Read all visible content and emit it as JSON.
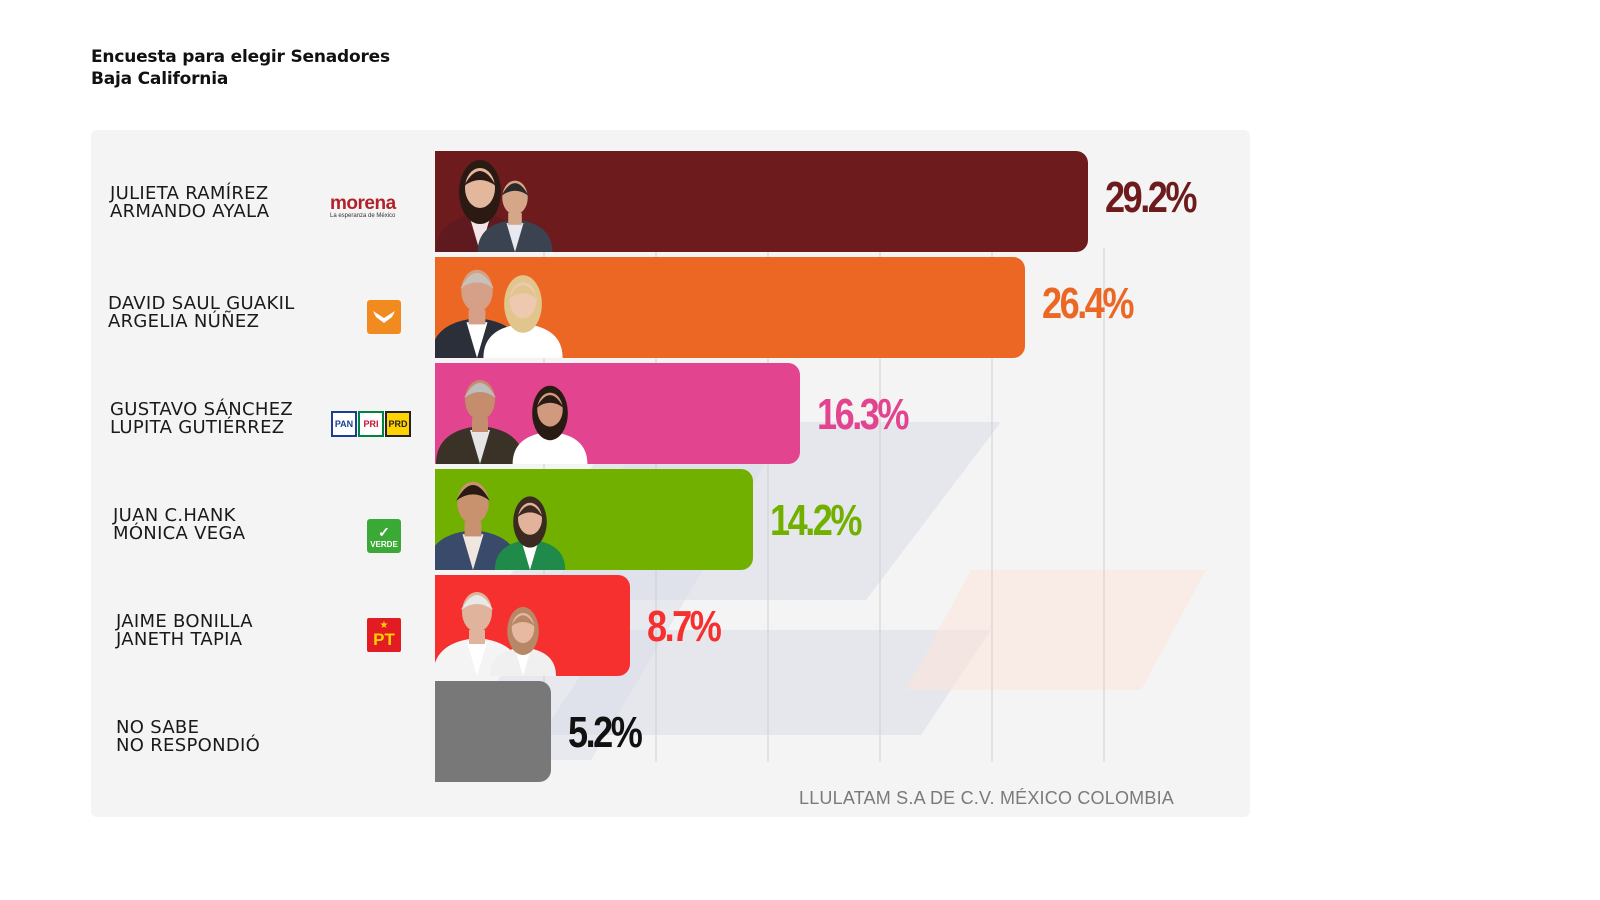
{
  "title": {
    "line1": "Encuesta para elegir Senadores",
    "line2": "Baja California"
  },
  "chart_data": {
    "type": "bar",
    "orientation": "horizontal",
    "categories": [
      "JULIETA RAMÍREZ / ARMANDO AYALA",
      "DAVID SAUL GUAKIL / ARGELIA NÚÑEZ",
      "GUSTAVO SÁNCHEZ / LUPITA GUTIÉRREZ",
      "JUAN C.HANK / MÓNICA VEGA",
      "JAIME BONILLA / JANETH TAPIA",
      "NO SABE / NO RESPONDIÓ"
    ],
    "values": [
      29.2,
      26.4,
      16.3,
      14.2,
      8.7,
      5.2
    ],
    "xlim": [
      0,
      30
    ],
    "grid": true
  },
  "rows": [
    {
      "name1": "JULIETA RAMÍREZ",
      "name2": "ARMANDO AYALA",
      "value": 29.2,
      "label": "29.2%",
      "color": "#6e1b1d",
      "pct_color": "#6e1b1d",
      "party": "morena",
      "logo_text": "morena",
      "logo_sub": "La esperanza de México",
      "logo_icon": "morena-logo-icon"
    },
    {
      "name1": "DAVID SAUL GUAKIL",
      "name2": "ARGELIA NÚÑEZ",
      "value": 26.4,
      "label": "26.4%",
      "color": "#ed6724",
      "pct_color": "#ed6724",
      "party": "movimiento-ciudadano",
      "logo_text": "",
      "logo_icon": "eagle-icon"
    },
    {
      "name1": "GUSTAVO SÁNCHEZ",
      "name2": "LUPITA GUTIÉRREZ",
      "value": 16.3,
      "label": "16.3%",
      "color": "#e2448f",
      "pct_color": "#e2448f",
      "party": "pan-pri-prd",
      "logo_text": "PAN",
      "logo_text2": "PRI",
      "logo_text3": "PRD",
      "logo_icon": "coalition-logo-icon"
    },
    {
      "name1": "JUAN C.HANK",
      "name2": "MÓNICA VEGA",
      "value": 14.2,
      "label": "14.2%",
      "color": "#72b000",
      "pct_color": "#72b000",
      "party": "verde",
      "logo_text": "VERDE",
      "logo_icon": "toucan-icon"
    },
    {
      "name1": "JAIME BONILLA",
      "name2": "JANETH TAPIA",
      "value": 8.7,
      "label": "8.7%",
      "color": "#f5302f",
      "pct_color": "#f5302f",
      "party": "pt",
      "logo_text": "PT",
      "logo_icon": "star-icon"
    },
    {
      "name1": "NO SABE",
      "name2": "NO RESPONDIÓ",
      "value": 5.2,
      "label": "5.2%",
      "color": "#787878",
      "pct_color": "#111111",
      "party": "",
      "logo_text": "",
      "logo_icon": ""
    }
  ],
  "footer": "LLULATAM S.A DE C.V. MÉXICO COLOMBIA"
}
